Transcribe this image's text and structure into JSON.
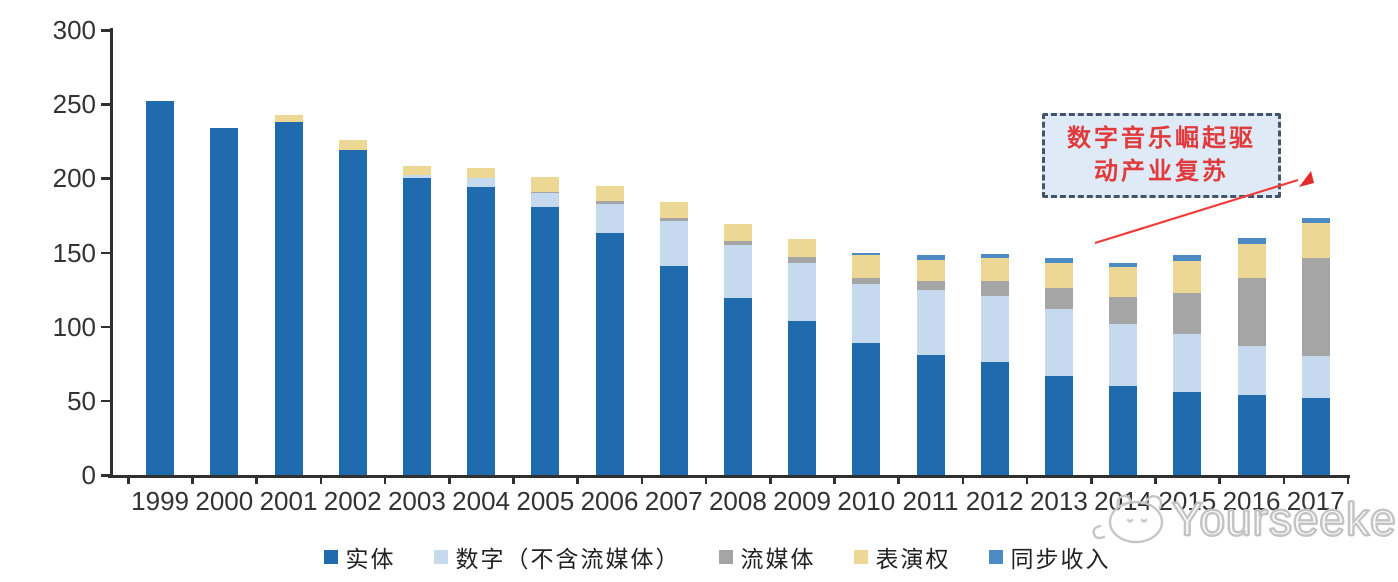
{
  "chart_data": {
    "type": "bar",
    "stacked": true,
    "title": "",
    "xlabel": "",
    "ylabel": "",
    "ylim": [
      0,
      300
    ],
    "y_ticks": [
      0,
      50,
      100,
      150,
      200,
      250,
      300
    ],
    "grid": false,
    "legend_position": "bottom",
    "categories": [
      "1999",
      "2000",
      "2001",
      "2002",
      "2003",
      "2004",
      "2005",
      "2006",
      "2007",
      "2008",
      "2009",
      "2010",
      "2011",
      "2012",
      "2013",
      "2014",
      "2015",
      "2016",
      "2017"
    ],
    "series": [
      {
        "name": "实体",
        "color": "#1F6BAD",
        "values": [
          252,
          234,
          238,
          219,
          200,
          194,
          181,
          163,
          141,
          119,
          104,
          89,
          81,
          76,
          67,
          60,
          56,
          54,
          52
        ]
      },
      {
        "name": "数字（不含流媒体）",
        "color": "#C5DAEF",
        "values": [
          0,
          0,
          0,
          0,
          2,
          6,
          9,
          20,
          30,
          36,
          39,
          40,
          44,
          45,
          45,
          42,
          39,
          33,
          28
        ]
      },
      {
        "name": "流媒体",
        "color": "#A5A5A5",
        "values": [
          0,
          0,
          0,
          0,
          0,
          0,
          1,
          2,
          2,
          3,
          4,
          4,
          6,
          10,
          14,
          18,
          28,
          46,
          66
        ]
      },
      {
        "name": "表演权",
        "color": "#ECD795",
        "values": [
          0,
          0,
          5,
          7,
          6,
          7,
          10,
          10,
          11,
          11,
          12,
          15,
          14,
          15,
          17,
          20,
          21,
          23,
          24
        ]
      },
      {
        "name": "同步收入",
        "color": "#4C8BC4",
        "values": [
          0,
          0,
          0,
          0,
          0,
          0,
          0,
          0,
          0,
          0,
          0,
          2,
          3,
          3,
          3,
          3,
          4,
          4,
          3
        ]
      }
    ]
  },
  "annotation": {
    "line1": "数字音乐崛起驱",
    "line2": "动产业复苏",
    "text_color": "#E03A3C",
    "box_fill": "#DEEBF7",
    "border_color": "#44546A",
    "arrow_color": "#F03B3B"
  },
  "watermark": {
    "text": "Yourseeker",
    "logo": "cat-logo-icon"
  }
}
